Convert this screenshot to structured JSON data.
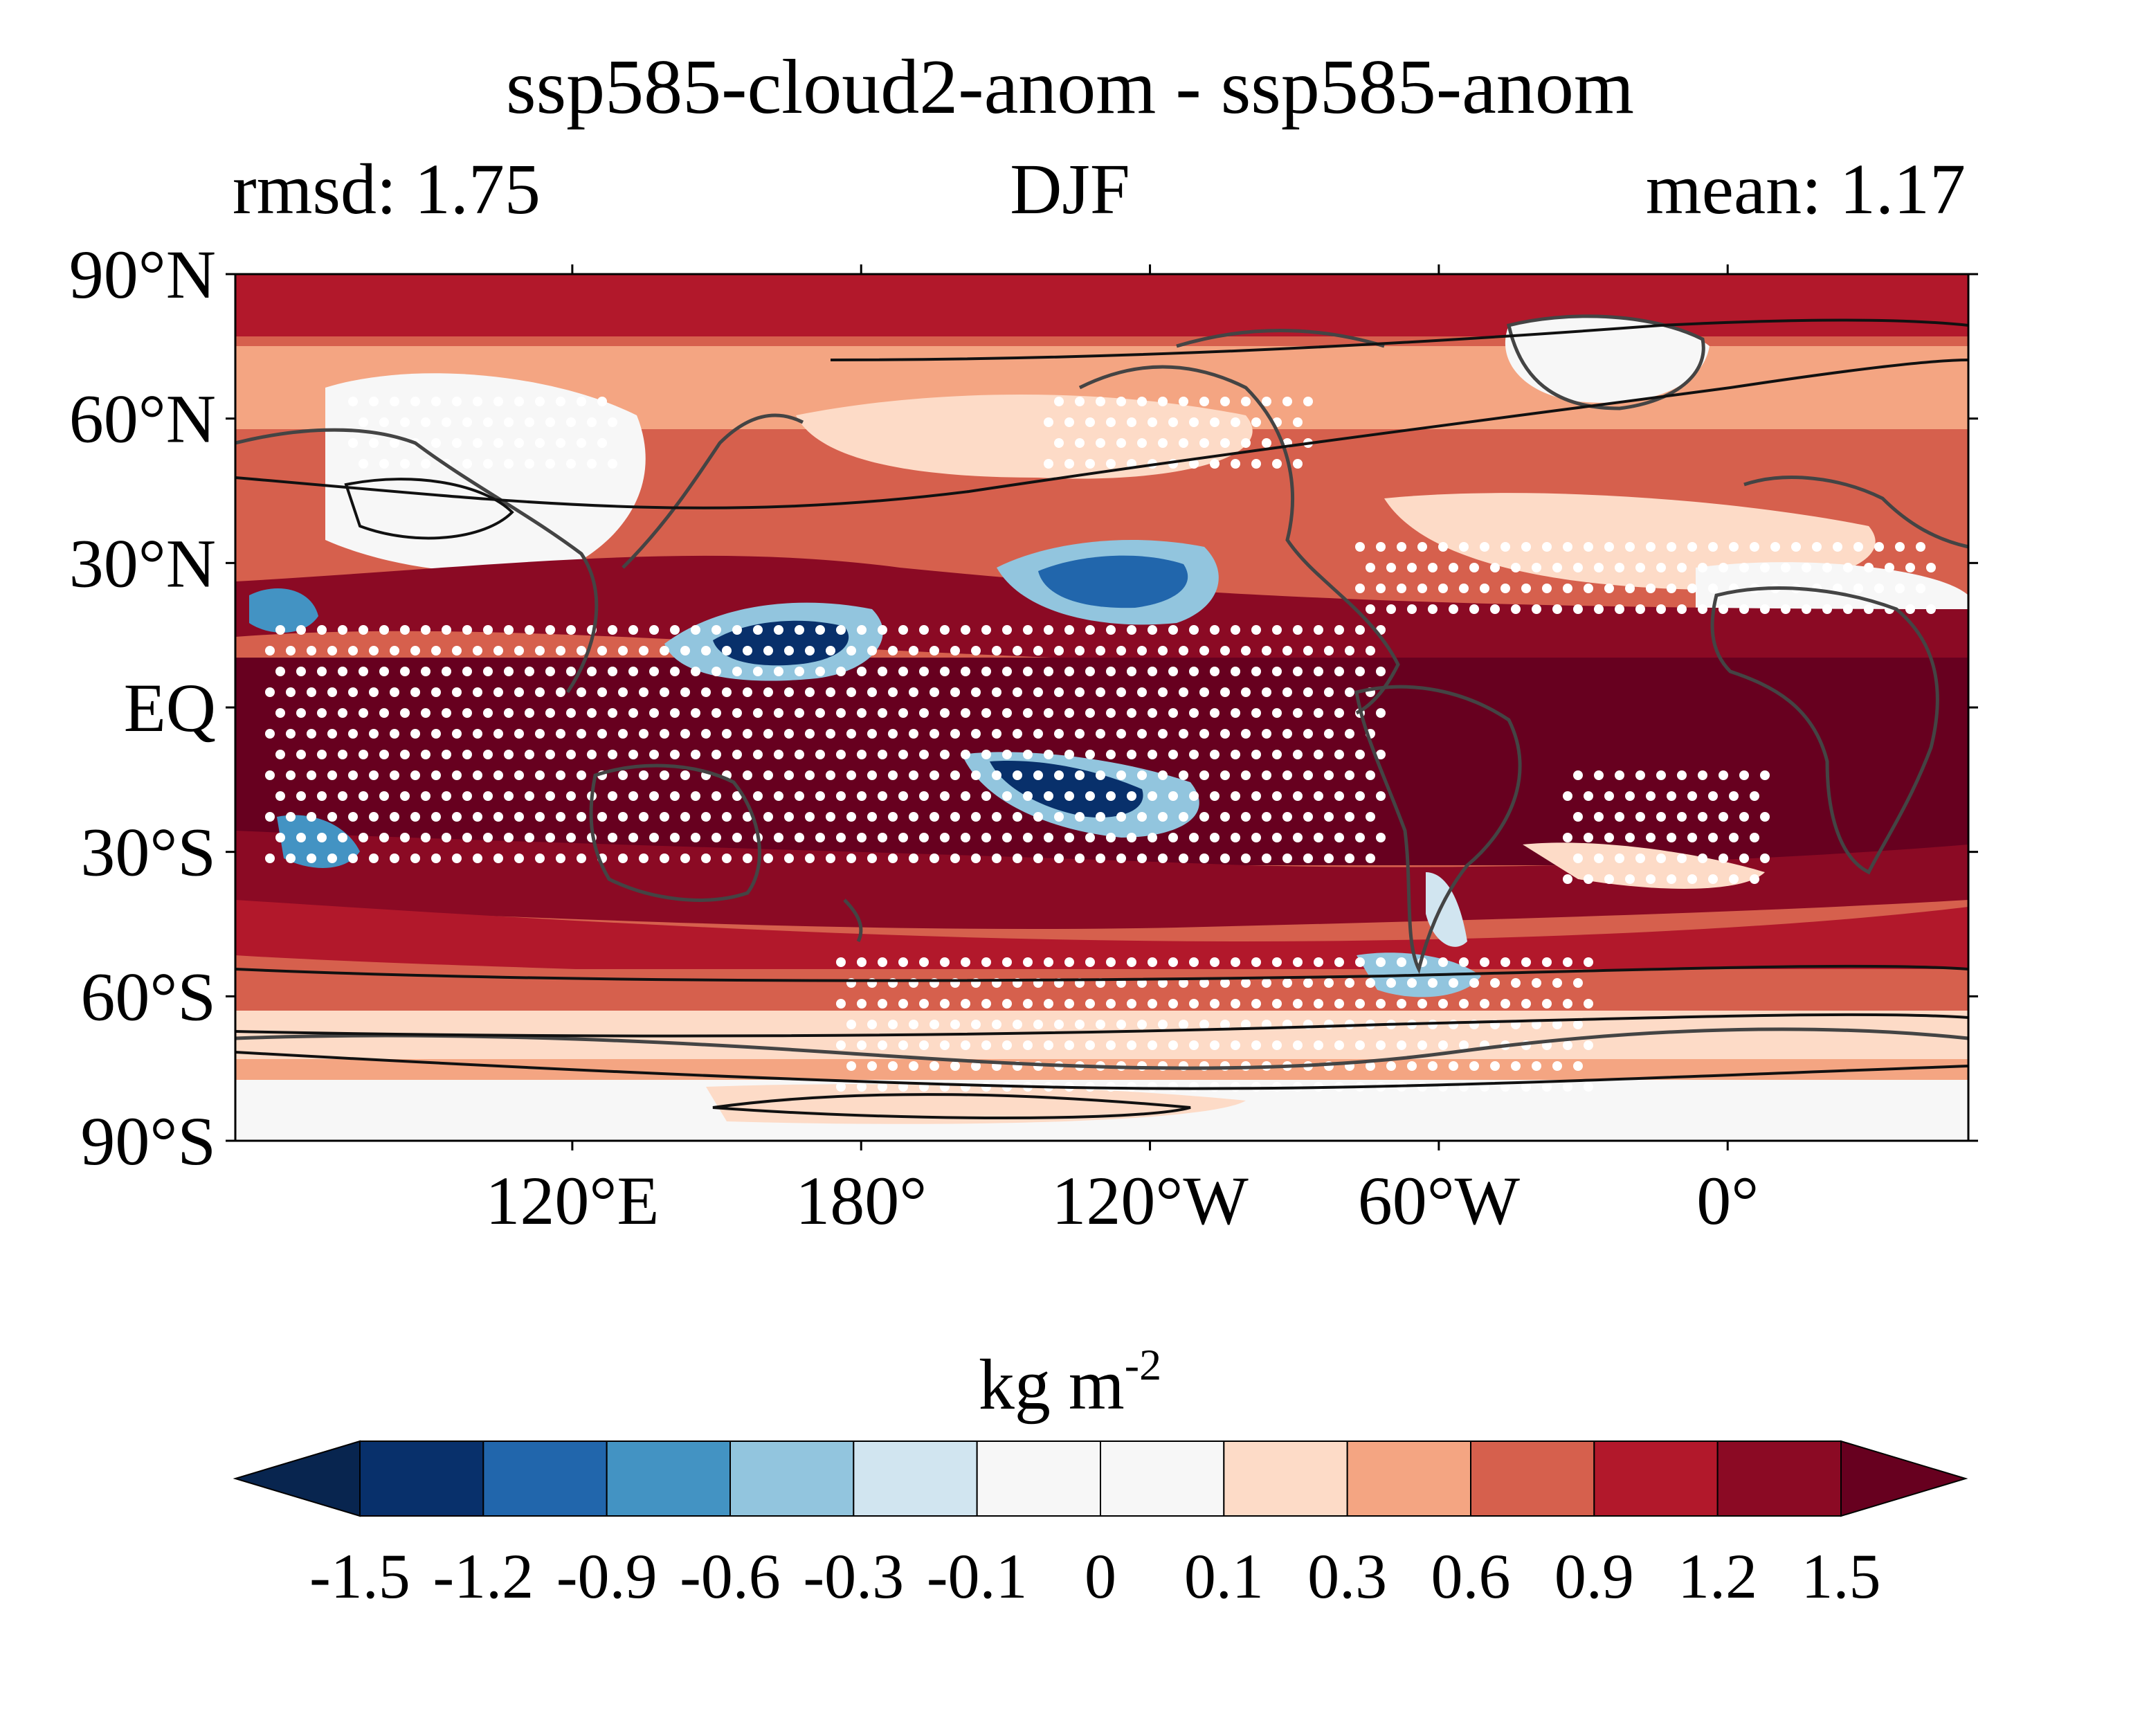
{
  "title": "ssp585-cloud2-anom - ssp585-anom",
  "left_label": "rmsd: 1.75",
  "center_label": "DJF",
  "right_label": "mean: 1.17",
  "units_base": "kg m",
  "units_exp": "-2",
  "lat_labels": [
    "90°N",
    "60°N",
    "30°N",
    "EQ",
    "30°S",
    "60°S",
    "90°S"
  ],
  "lon_labels": [
    "120°E",
    "180°",
    "120°W",
    "60°W",
    "0°"
  ],
  "colorbar": {
    "levels": [
      "-1.5",
      "-1.2",
      "-0.9",
      "-0.6",
      "-0.3",
      "-0.1",
      "0",
      "0.1",
      "0.3",
      "0.6",
      "0.9",
      "1.2",
      "1.5"
    ],
    "colors": [
      "#08254f",
      "#08306b",
      "#2166ac",
      "#4393c3",
      "#92c5de",
      "#d1e5f0",
      "#f7f7f7",
      "#f7f7f7",
      "#fddbc7",
      "#f4a582",
      "#d6604d",
      "#b2182b",
      "#8b0a24",
      "#67001f"
    ]
  },
  "map": {
    "colormap": "RdBu_r",
    "stippling": "white dots",
    "coastline_color": "#444444",
    "contour_color": "#111111"
  }
}
